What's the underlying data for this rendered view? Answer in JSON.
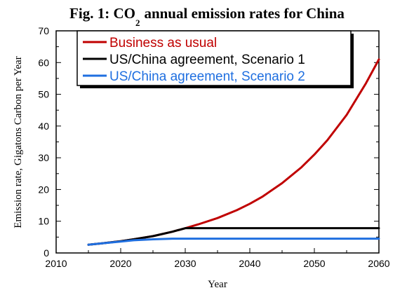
{
  "chart_data": {
    "type": "line",
    "title": {
      "prefix": "Fig. 1: CO",
      "subscript": "2",
      "suffix": "annual emission rates for China"
    },
    "xlabel": "Year",
    "ylabel": "Emission rate, Gigatons Carbon per Year",
    "xlim": [
      2010,
      2060
    ],
    "ylim": [
      0,
      70
    ],
    "xticks": [
      2010,
      2020,
      2030,
      2040,
      2050,
      2060
    ],
    "yticks": [
      0,
      10,
      20,
      30,
      40,
      50,
      60,
      70
    ],
    "grid": false,
    "legend_position": "top-left",
    "series": [
      {
        "name": "Business as usual",
        "color": "#c00000",
        "x": [
          2015,
          2017,
          2020,
          2022,
          2025,
          2028,
          2030,
          2032,
          2035,
          2038,
          2040,
          2042,
          2045,
          2048,
          2050,
          2052,
          2055,
          2058,
          2060
        ],
        "y": [
          2.6,
          3.0,
          3.7,
          4.3,
          5.3,
          6.7,
          7.8,
          9.0,
          11.0,
          13.5,
          15.5,
          17.8,
          22.0,
          27.0,
          31.0,
          35.5,
          43.5,
          53.5,
          61.0
        ]
      },
      {
        "name": "US/China agreement, Scenario 1",
        "color": "#000000",
        "x": [
          2015,
          2017,
          2020,
          2022,
          2025,
          2028,
          2030,
          2035,
          2040,
          2045,
          2050,
          2055,
          2060
        ],
        "y": [
          2.6,
          3.0,
          3.7,
          4.3,
          5.3,
          6.7,
          7.8,
          7.8,
          7.8,
          7.8,
          7.8,
          7.8,
          7.8
        ]
      },
      {
        "name": "US/China agreement, Scenario 2",
        "color": "#1f6fe0",
        "x": [
          2015,
          2017,
          2020,
          2022,
          2025,
          2028,
          2030,
          2035,
          2040,
          2045,
          2050,
          2055,
          2060
        ],
        "y": [
          2.6,
          3.0,
          3.6,
          4.0,
          4.3,
          4.5,
          4.5,
          4.5,
          4.5,
          4.5,
          4.5,
          4.5,
          4.5
        ]
      }
    ]
  }
}
